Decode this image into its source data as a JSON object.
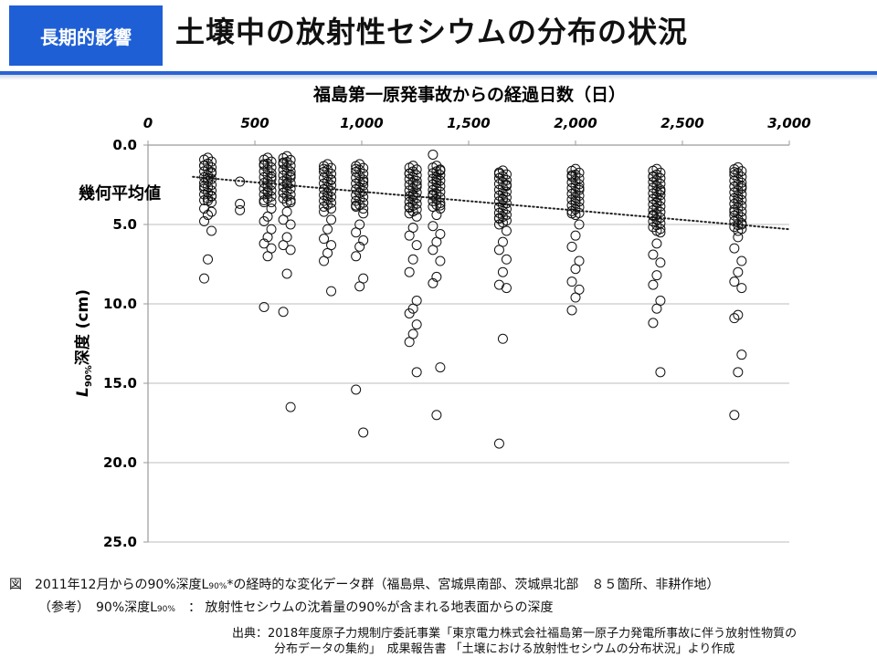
{
  "header": {
    "badge": "長期的影響",
    "title": "土壌中の放射性セシウムの分布の状況"
  },
  "chart_data": {
    "type": "scatter",
    "title": "",
    "xlabel": "福島第一原発事故からの経過日数（日）",
    "ylabel_main": "L",
    "ylabel_sub": "90%",
    "ylabel_rest": "深度 (cm)",
    "xlim": [
      0,
      3000
    ],
    "ylim": [
      0,
      25
    ],
    "y_inverted": true,
    "x_axis_position": "top",
    "x_ticks": [
      "0",
      "500",
      "1,000",
      "1,500",
      "2,000",
      "2,500",
      "3,000"
    ],
    "x_tick_values": [
      0,
      500,
      1000,
      1500,
      2000,
      2500,
      3000
    ],
    "y_ticks": [
      "0.0",
      "5.0",
      "10.0",
      "15.0",
      "20.0",
      "25.0"
    ],
    "y_tick_values": [
      0,
      5,
      10,
      15,
      20,
      25
    ],
    "grid": "horizontal",
    "trend_label": "幾何平均値",
    "trendline": {
      "x": [
        210,
        3000
      ],
      "y": [
        2.0,
        5.3
      ],
      "style": "dotted"
    },
    "survey_days": [
      280,
      560,
      650,
      840,
      990,
      1240,
      1350,
      1660,
      2000,
      2380,
      2760
    ],
    "columns": [
      {
        "x": 280,
        "cluster": [
          0.8,
          3.6
        ],
        "extra": [
          1.3,
          1.7,
          2.1,
          2.6,
          3.2,
          3.5,
          4.0,
          4.2,
          4.4,
          4.8,
          5.4,
          7.2,
          8.4
        ]
      },
      {
        "x": 430,
        "cluster": null,
        "extra": [
          2.3,
          3.7,
          4.1
        ]
      },
      {
        "x": 560,
        "cluster": [
          0.8,
          3.6
        ],
        "extra": [
          1.2,
          2.0,
          2.9,
          3.6,
          4.0,
          4.5,
          4.8,
          5.3,
          5.8,
          6.2,
          6.5,
          7.0,
          10.2
        ]
      },
      {
        "x": 650,
        "cluster": [
          0.7,
          3.6
        ],
        "extra": [
          1.1,
          1.9,
          2.4,
          3.0,
          3.6,
          4.2,
          4.7,
          5.0,
          5.8,
          6.3,
          6.6,
          8.1,
          10.5,
          16.5
        ]
      },
      {
        "x": 840,
        "cluster": [
          1.2,
          4.0
        ],
        "extra": [
          1.5,
          2.2,
          3.2,
          4.2,
          4.7,
          5.3,
          5.9,
          6.3,
          6.8,
          7.3,
          9.2
        ]
      },
      {
        "x": 990,
        "cluster": [
          1.2,
          4.0
        ],
        "extra": [
          1.5,
          2.3,
          3.0,
          3.8,
          4.3,
          5.0,
          5.5,
          6.0,
          6.4,
          7.0,
          8.4,
          8.9,
          15.4,
          18.1
        ]
      },
      {
        "x": 1240,
        "cluster": [
          1.3,
          4.3
        ],
        "extra": [
          1.8,
          2.5,
          3.2,
          3.9,
          4.5,
          5.2,
          5.7,
          6.3,
          7.2,
          8.0,
          9.8,
          10.3,
          10.6,
          11.3,
          11.9,
          12.4,
          14.3
        ]
      },
      {
        "x": 1350,
        "cluster": [
          1.3,
          4.0
        ],
        "extra": [
          0.6,
          1.6,
          2.2,
          3.1,
          3.8,
          4.4,
          5.1,
          5.6,
          6.1,
          6.6,
          7.3,
          8.3,
          8.7,
          14.0,
          17.0
        ]
      },
      {
        "x": 1660,
        "cluster": [
          1.6,
          5.0
        ],
        "extra": [
          1.8,
          2.5,
          3.4,
          4.6,
          5.4,
          6.1,
          6.6,
          7.2,
          8.0,
          8.8,
          9.0,
          12.2,
          18.8
        ]
      },
      {
        "x": 2000,
        "cluster": [
          1.5,
          4.4
        ],
        "extra": [
          1.9,
          2.7,
          3.5,
          4.3,
          5.0,
          5.7,
          6.4,
          7.3,
          7.8,
          8.6,
          9.1,
          9.6,
          10.4
        ]
      },
      {
        "x": 2380,
        "cluster": [
          1.5,
          5.4
        ],
        "extra": [
          2.0,
          2.9,
          3.6,
          4.4,
          5.5,
          6.2,
          6.9,
          7.4,
          8.2,
          8.8,
          9.8,
          10.3,
          11.2,
          14.3
        ]
      },
      {
        "x": 2760,
        "cluster": [
          1.4,
          5.4
        ],
        "extra": [
          1.7,
          2.6,
          3.4,
          4.2,
          5.0,
          5.8,
          6.5,
          7.3,
          8.0,
          8.6,
          9.0,
          10.7,
          10.9,
          13.2,
          14.3,
          17.0
        ]
      }
    ]
  },
  "footnotes": {
    "caption_prefix": "図　2011年12月からの90%深度L",
    "caption_sub": "90%",
    "caption_rest": "*の経時的な変化データ群（福島県、宮城県南部、茨城県北部　８５箇所、非耕作地）",
    "note_prefix": "（参考）　90%深度L",
    "note_sub": "90%",
    "note_rest": "：  放射性セシウムの沈着量の90%が含まれる地表面からの深度",
    "source_line1": "出典：2018年度原子力規制庁委託事業「東京電力株式会社福島第一原子力発電所事故に伴う放射性物質の",
    "source_line2": "分布データの集約」　成果報告書 「土壌における放射性セシウムの分布状況」より作成"
  }
}
